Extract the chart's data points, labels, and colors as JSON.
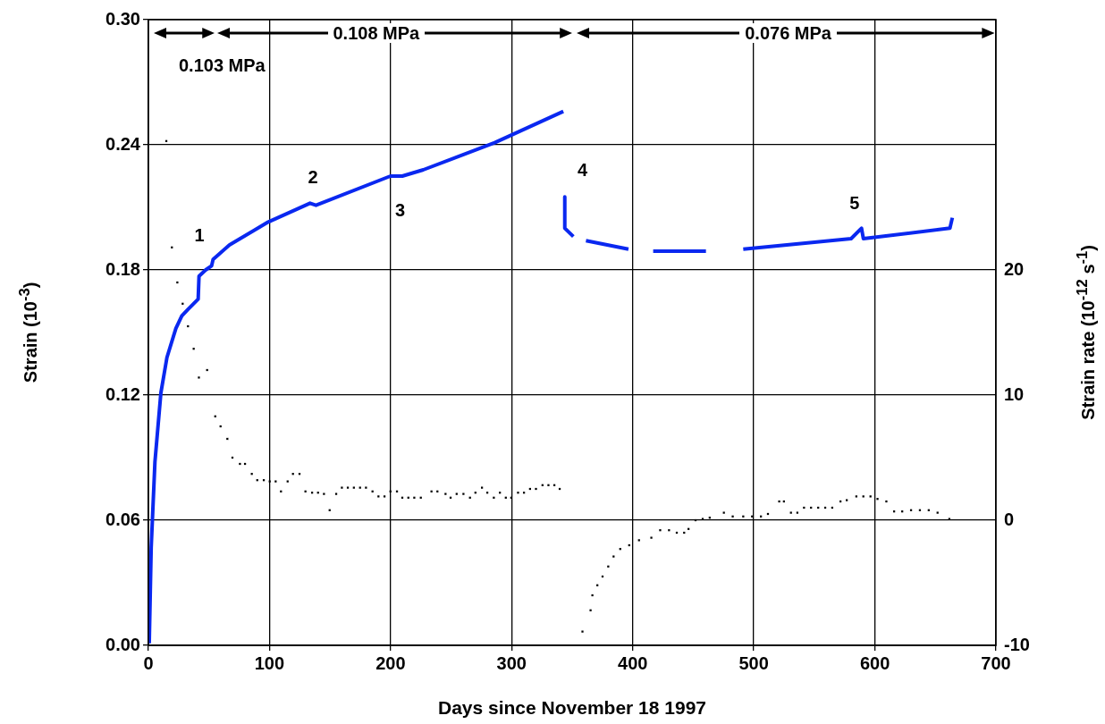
{
  "chart_data": {
    "type": "line",
    "xlabel": "Days since November 18 1997",
    "ylabel": "Strain (10$^{-3}$)",
    "y2label": "Strain rate (10$^{-12}$ s$^{-1}$)",
    "xlim": [
      0,
      700
    ],
    "xticks": [
      0,
      100,
      200,
      300,
      400,
      500,
      600,
      700
    ],
    "ylim": [
      0,
      0.3
    ],
    "yticks": [
      {
        "value": 0,
        "label": "0.00"
      },
      0.06,
      0.12,
      0.18,
      0.24,
      {
        "value": 0.3,
        "label": "0.30"
      }
    ],
    "y2lim": [
      -10,
      40
    ],
    "y2ticks": [
      -10,
      0,
      10,
      20
    ],
    "grid": true,
    "legend": false,
    "series": [
      {
        "color": "#0a28f0",
        "marker": "none",
        "line_style": "solid",
        "x": [
          0.7,
          1.5,
          2.3,
          5.4,
          10.3,
          15.3,
          22.7,
          27.6,
          32.5,
          41.1,
          41.8,
          47.3,
          52.2,
          53.4,
          67,
          99,
          133.5,
          138.4,
          199.9,
          209.7,
          227,
          286,
          342.7,
          343.3,
          343.9,
          343.9,
          351,
          356,
          361.4,
          396.5,
          406,
          416.9,
          460.5,
          476,
          491.3,
          580.4,
          589,
          590.5,
          662,
          664
        ],
        "values": [
          0.001,
          0.024,
          0.047,
          0.088,
          0.121,
          0.138,
          0.152,
          0.158,
          0.161,
          0.166,
          0.177,
          0.18,
          0.182,
          0.185,
          0.192,
          0.203,
          0.212,
          0.211,
          0.225,
          0.225,
          0.228,
          0.241,
          0.256,
          null,
          0.215,
          0.2,
          0.196,
          null,
          0.194,
          0.19,
          null,
          0.189,
          0.189,
          null,
          0.19,
          0.195,
          0.2,
          0.195,
          0.2,
          0.205
        ]
      },
      {
        "type": "scatter",
        "axis": "y2",
        "color": "#000000",
        "marker": "square",
        "x": [
          14.8,
          19.4,
          23.9,
          28.3,
          32.7,
          37.4,
          41.7,
          48.5,
          55.2,
          59.6,
          65.2,
          69.4,
          75.6,
          79.8,
          85.4,
          89.9,
          95.3,
          100.2,
          105.1,
          109.5,
          115,
          119.4,
          124.8,
          129.7,
          135.2,
          140.1,
          145,
          149.7,
          155.1,
          159.8,
          164.7,
          169.7,
          174.8,
          179.7,
          185.1,
          190,
          195,
          199.9,
          205.3,
          209.7,
          214.7,
          219.6,
          225,
          233.8,
          238.7,
          245.4,
          249.6,
          254.6,
          260.2,
          265.6,
          270.1,
          275.5,
          279.9,
          285.3,
          290.3,
          295.2,
          299.7,
          305.3,
          310.2,
          315.2,
          320.1,
          325.5,
          330.4,
          335.3,
          339.7,
          358.5,
          365.2,
          366.7,
          370.8,
          375.1,
          379.8,
          384.2,
          389.7,
          397.1,
          405.2,
          415.4,
          422.7,
          430,
          436.4,
          442.5,
          446.1,
          451.9,
          457.8,
          463.6,
          475.3,
          482.6,
          491.3,
          498.6,
          505.9,
          511.7,
          521,
          524.9,
          530.7,
          536,
          541.5,
          547.3,
          553.2,
          559,
          564.8,
          571.6,
          576.8,
          584.7,
          590.5,
          596.4,
          602.2,
          609.5,
          615.9,
          622.6,
          629.9,
          637.2,
          644.5,
          651.8,
          661.5
        ],
        "values": [
          30.3,
          21.8,
          19,
          17.3,
          15.5,
          13.7,
          11.4,
          12,
          8.3,
          7.5,
          6.5,
          5,
          4.5,
          4.5,
          3.7,
          3.2,
          3.2,
          3.1,
          3.1,
          2.3,
          3.1,
          3.7,
          3.7,
          2.3,
          2.2,
          2.2,
          2.1,
          0.8,
          2.1,
          2.6,
          2.6,
          2.6,
          2.6,
          2.6,
          2.3,
          1.9,
          1.9,
          2.3,
          2.3,
          1.8,
          1.8,
          1.8,
          1.8,
          2.3,
          2.3,
          2.1,
          1.8,
          2.1,
          2.1,
          1.8,
          2.2,
          2.6,
          2.2,
          1.8,
          2.2,
          1.8,
          1.8,
          2.2,
          2.2,
          2.5,
          2.5,
          2.8,
          2.8,
          2.8,
          2.5,
          -8.9,
          -7.2,
          -6,
          -5.2,
          -4.5,
          -3.7,
          -2.9,
          -2.3,
          -2,
          -1.6,
          -1.4,
          -0.8,
          -0.8,
          -1,
          -1,
          -0.7,
          0,
          0.1,
          0.2,
          0.6,
          0.3,
          0.3,
          0.3,
          0.3,
          0.5,
          1.5,
          1.5,
          0.6,
          0.6,
          1,
          1,
          1,
          1,
          1,
          1.5,
          1.6,
          1.9,
          1.9,
          1.9,
          1.7,
          1.5,
          0.7,
          0.7,
          0.8,
          0.8,
          0.8,
          0.6,
          0.1
        ]
      }
    ],
    "annotations": [
      "1",
      "2",
      "3",
      "4",
      "5",
      "0.103 MPa",
      "0.108 MPa",
      "0.076 MPa"
    ]
  }
}
